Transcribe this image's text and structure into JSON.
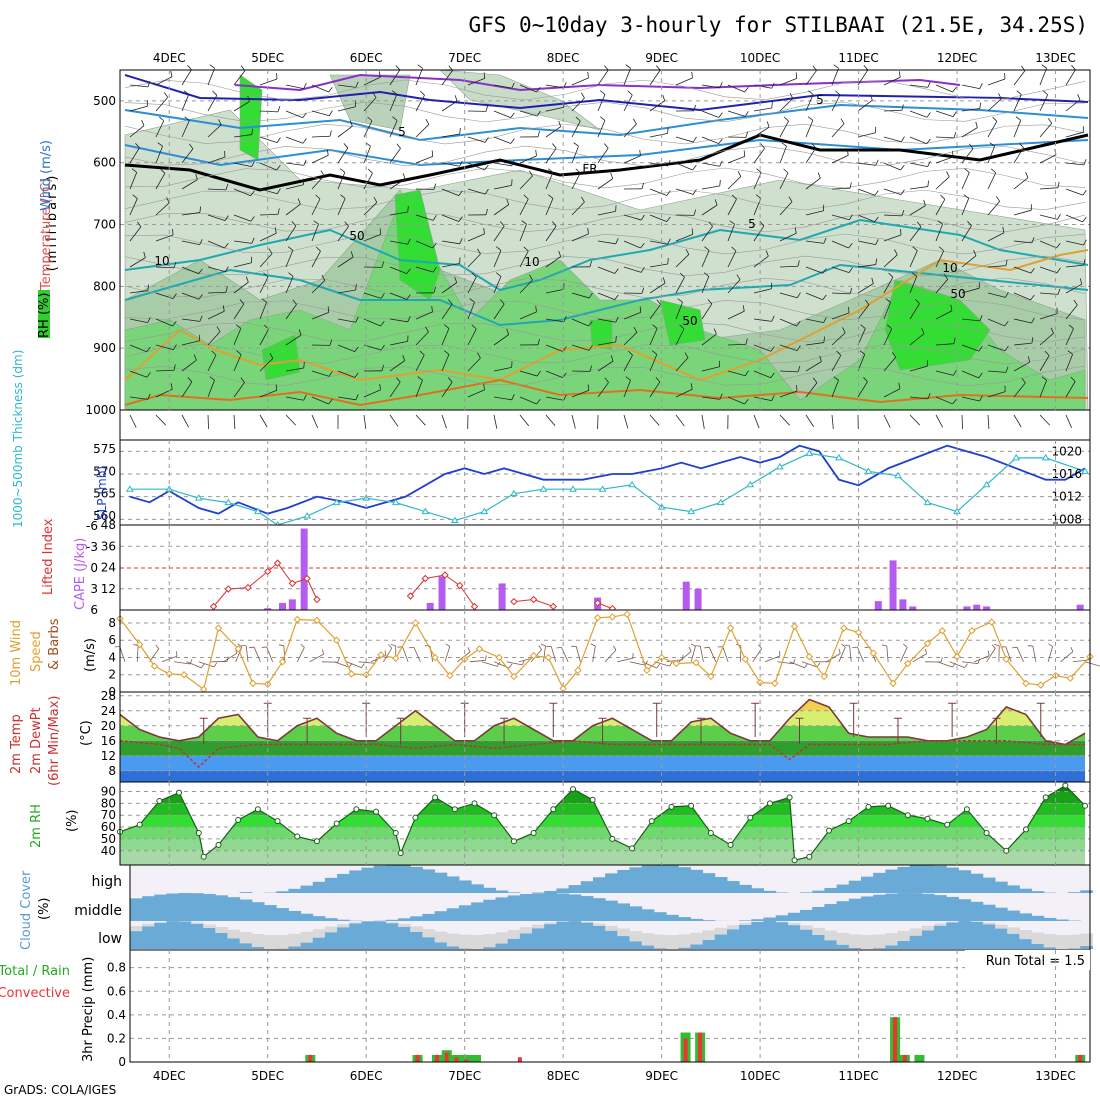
{
  "page": {
    "title": "GFS 0~10day 3-hourly for STILBAAI (21.5E, 34.25S)",
    "credit": "GrADS: COLA/IGES",
    "run_total": "Run Total = 1.5"
  },
  "dates": [
    "4DEC",
    "5DEC",
    "6DEC",
    "7DEC",
    "8DEC",
    "9DEC",
    "10DEC",
    "11DEC",
    "12DEC",
    "13DEC"
  ],
  "panels": {
    "upper": {
      "label_rh": "RH (%)",
      "label_temp": "Temperature (°C)",
      "label_wind": "Wind (m/s)",
      "label_mb": "(millibars)",
      "yticks": [
        "500",
        "600",
        "700",
        "800",
        "900",
        "1000"
      ],
      "contour_labels": [
        "5",
        "5",
        "5",
        "10",
        "10",
        "10",
        "FR",
        "50",
        "50",
        "50"
      ]
    },
    "thick": {
      "label_thick": "1000~500mb Thickness (dm)",
      "label_slp": "SLP (mb)",
      "yticks_left": [
        "575",
        "570",
        "565",
        "560"
      ],
      "yticks_right": [
        "1020",
        "1016",
        "1012",
        "1008"
      ]
    },
    "cape": {
      "label_li": "Lifted Index",
      "label_cape": "CAPE (J/kg)",
      "yticks_left": [
        "-6",
        "-3",
        "0",
        "3",
        "6"
      ],
      "yticks_right": [
        "48",
        "36",
        "24",
        "12"
      ]
    },
    "wind": {
      "label1": "10m Wind",
      "label2": "Speed",
      "label3": "& Barbs",
      "unit": "(m/s)",
      "yticks": [
        "8",
        "6",
        "4",
        "2",
        "0"
      ]
    },
    "temp": {
      "label1": "2m Temp",
      "label2": "2m DewPt",
      "label3": "(6hr Min/Max)",
      "unit": "(°C)",
      "yticks": [
        "28",
        "24",
        "20",
        "16",
        "12",
        "8"
      ]
    },
    "rh": {
      "label1": "2m RH",
      "unit": "(%)",
      "yticks": [
        "90",
        "80",
        "70",
        "60",
        "50",
        "40"
      ]
    },
    "cloud": {
      "label1": "Cloud Cover",
      "unit": "(%)",
      "levels": [
        "high",
        "middle",
        "low"
      ]
    },
    "precip": {
      "label1": "Total / Rain",
      "label2": "Convective",
      "label3": "3hr Precip (mm)",
      "yticks": [
        "0.8",
        "0.6",
        "0.4",
        "0.2",
        "0"
      ]
    }
  },
  "colors": {
    "rh_green": "#33cc33",
    "rh_bright": "#00ff00",
    "slp": "#1f3fcf",
    "thickness": "#2fb8c8",
    "lifted_index": "#e03030",
    "cape": "#b45cf0",
    "wind_speed": "#e0a030",
    "cloud": "#6aaad6",
    "precip_total": "#33bb33",
    "precip_conv": "#ee3333"
  },
  "chart_data": [
    {
      "type": "line",
      "id": "slp",
      "series": [
        {
          "name": "SLP (mb)",
          "x": [
            3.6,
            3.8,
            4.0,
            4.3,
            4.5,
            4.7,
            5.0,
            5.2,
            5.5,
            5.8,
            6.0,
            6.2,
            6.4,
            6.6,
            6.8,
            7.0,
            7.2,
            7.4,
            7.6,
            7.8,
            8.0,
            8.2,
            8.5,
            8.7,
            9.0,
            9.2,
            9.4,
            9.6,
            9.8,
            10.0,
            10.2,
            10.4,
            10.6,
            10.8,
            11.0,
            11.3,
            11.6,
            11.9,
            12.1,
            12.3,
            12.6,
            12.9,
            13.1,
            13.3
          ],
          "y": [
            1012,
            1011,
            1013,
            1010,
            1009,
            1011,
            1009,
            1010,
            1012,
            1011,
            1010,
            1011,
            1012,
            1014,
            1016,
            1017,
            1016,
            1017,
            1016,
            1015,
            1015,
            1015,
            1016,
            1016,
            1017,
            1018,
            1017,
            1018,
            1019,
            1018,
            1019,
            1021,
            1020,
            1015,
            1014,
            1017,
            1019,
            1021,
            1020,
            1019,
            1017,
            1015,
            1015,
            1017
          ]
        }
      ]
    },
    {
      "type": "line",
      "id": "thickness",
      "series": [
        {
          "name": "1000~500mb Thickness (dm)",
          "x": [
            3.6,
            4.0,
            4.3,
            4.6,
            4.9,
            5.1,
            5.4,
            5.7,
            6.0,
            6.3,
            6.6,
            6.9,
            7.2,
            7.5,
            7.8,
            8.1,
            8.4,
            8.7,
            9.0,
            9.3,
            9.6,
            9.9,
            10.2,
            10.5,
            10.8,
            11.1,
            11.4,
            11.7,
            12.0,
            12.3,
            12.6,
            12.9,
            13.3
          ],
          "y": [
            566,
            566,
            564,
            563,
            561,
            558,
            560,
            563,
            564,
            563,
            561,
            559,
            561,
            565,
            566,
            566,
            566,
            567,
            562,
            561,
            563,
            567,
            571,
            574,
            573,
            570,
            569,
            563,
            561,
            567,
            573,
            573,
            570
          ]
        }
      ]
    },
    {
      "type": "line",
      "id": "lifted_index",
      "series": [
        {
          "name": "Lifted Index",
          "x": [
            4.45,
            4.6,
            4.8,
            5.0,
            5.1,
            5.25,
            5.4,
            5.5
          ],
          "y": [
            5.5,
            3.0,
            2.8,
            0.5,
            -0.7,
            2.2,
            1.5,
            4.5
          ]
        },
        {
          "name": "Lifted Index",
          "x": [
            6.45,
            6.6,
            6.8,
            6.95,
            7.1
          ],
          "y": [
            4.0,
            1.5,
            1.0,
            2.5,
            5.5
          ]
        },
        {
          "name": "Lifted Index",
          "x": [
            7.5,
            7.7,
            7.9
          ],
          "y": [
            4.8,
            4.5,
            5.5
          ]
        },
        {
          "name": "Lifted Index",
          "x": [
            8.35,
            8.5
          ],
          "y": [
            5.0,
            5.8
          ]
        }
      ]
    },
    {
      "type": "bar",
      "id": "cape",
      "x": [
        5.0,
        5.15,
        5.25,
        5.37,
        6.65,
        6.77,
        7.38,
        8.35,
        9.25,
        9.37,
        11.2,
        11.35,
        11.45,
        11.55,
        12.1,
        12.2,
        12.3,
        13.25
      ],
      "values": [
        1,
        4,
        6,
        46,
        4,
        19,
        15,
        7,
        16,
        12,
        5,
        28,
        6,
        2,
        2,
        3,
        2,
        3
      ]
    },
    {
      "type": "line",
      "id": "wind_speed",
      "series": [
        {
          "name": "Speed",
          "x": [
            3.5,
            3.7,
            3.85,
            4.0,
            4.15,
            4.35,
            4.5,
            4.7,
            4.85,
            5.0,
            5.15,
            5.3,
            5.5,
            5.7,
            5.85,
            6.0,
            6.15,
            6.3,
            6.5,
            6.7,
            6.85,
            7.0,
            7.15,
            7.35,
            7.5,
            7.7,
            7.85,
            8.0,
            8.15,
            8.35,
            8.5,
            8.65,
            8.85,
            9.0,
            9.15,
            9.35,
            9.5,
            9.7,
            9.85,
            10.0,
            10.15,
            10.35,
            10.5,
            10.65,
            10.85,
            11.0,
            11.15,
            11.35,
            11.5,
            11.7,
            11.85,
            12.0,
            12.15,
            12.35,
            12.5,
            12.7,
            12.85,
            13.0,
            13.15,
            13.35
          ],
          "y": [
            8.5,
            5.5,
            3.0,
            2.1,
            2.0,
            0.3,
            7.4,
            5.0,
            1.0,
            0.9,
            3.5,
            8.4,
            8.3,
            6.0,
            2.1,
            2.0,
            4.3,
            3.9,
            8.0,
            4.0,
            1.9,
            3.8,
            5.0,
            4.0,
            1.8,
            4.2,
            4.0,
            0.4,
            2.5,
            8.6,
            8.7,
            9.0,
            2.5,
            4.0,
            3.3,
            3.4,
            1.8,
            7.4,
            3.8,
            1.1,
            1.0,
            7.6,
            4.1,
            1.8,
            7.4,
            6.9,
            4.5,
            1.0,
            3.3,
            5.6,
            7.1,
            4.1,
            7.1,
            8.1,
            3.8,
            1.0,
            0.8,
            1.9,
            1.6,
            4.1
          ]
        }
      ]
    },
    {
      "type": "area",
      "id": "temp",
      "series": [
        {
          "name": "2m Temp",
          "x": [
            3.5,
            3.7,
            3.9,
            4.1,
            4.3,
            4.5,
            4.7,
            4.9,
            5.1,
            5.3,
            5.5,
            5.7,
            5.9,
            6.1,
            6.3,
            6.5,
            6.7,
            6.9,
            7.1,
            7.3,
            7.5,
            7.7,
            7.9,
            8.1,
            8.3,
            8.5,
            8.7,
            8.9,
            9.1,
            9.3,
            9.5,
            9.7,
            9.9,
            10.1,
            10.3,
            10.5,
            10.7,
            10.9,
            11.1,
            11.3,
            11.5,
            11.7,
            11.9,
            12.1,
            12.3,
            12.5,
            12.7,
            12.9,
            13.1,
            13.3
          ],
          "y": [
            23,
            19,
            17,
            16,
            17,
            22,
            23,
            17,
            16,
            20,
            22,
            18,
            16,
            16,
            20,
            24,
            20,
            16,
            16,
            20,
            22,
            19,
            16,
            16,
            20,
            22,
            19,
            16,
            16,
            21,
            22,
            18,
            16,
            16,
            22,
            27,
            25,
            18,
            17,
            17,
            17,
            16,
            16,
            17,
            19,
            25,
            23,
            16,
            15,
            18
          ]
        },
        {
          "name": "2m DewPt",
          "x": [
            3.5,
            3.9,
            4.1,
            4.3,
            4.5,
            4.9,
            5.3,
            5.7,
            6.1,
            6.5,
            6.9,
            7.3,
            7.7,
            8.1,
            8.5,
            8.9,
            9.3,
            9.7,
            10.1,
            10.3,
            10.5,
            10.9,
            11.3,
            11.7,
            12.1,
            12.5,
            12.9,
            13.3
          ],
          "y": [
            16,
            15,
            14,
            9,
            14,
            15,
            15,
            15,
            15,
            14,
            15,
            14,
            15,
            16,
            15,
            15,
            15,
            15,
            15,
            11,
            15,
            15,
            15,
            16,
            16,
            16,
            15,
            15
          ]
        }
      ]
    },
    {
      "type": "area",
      "id": "rh",
      "series": [
        {
          "name": "2m RH",
          "x": [
            3.5,
            3.7,
            3.9,
            4.1,
            4.3,
            4.35,
            4.5,
            4.7,
            4.9,
            5.1,
            5.3,
            5.5,
            5.7,
            5.9,
            6.1,
            6.3,
            6.35,
            6.5,
            6.7,
            6.9,
            7.1,
            7.3,
            7.5,
            7.7,
            7.9,
            8.1,
            8.3,
            8.5,
            8.7,
            8.9,
            9.1,
            9.3,
            9.5,
            9.7,
            9.9,
            10.1,
            10.3,
            10.35,
            10.5,
            10.7,
            10.9,
            11.1,
            11.3,
            11.5,
            11.7,
            11.9,
            12.1,
            12.3,
            12.5,
            12.7,
            12.9,
            13.1,
            13.3
          ],
          "y": [
            56,
            62,
            82,
            89,
            55,
            35,
            45,
            66,
            75,
            65,
            52,
            48,
            63,
            75,
            73,
            55,
            38,
            68,
            85,
            75,
            80,
            70,
            48,
            55,
            75,
            92,
            83,
            50,
            42,
            65,
            77,
            78,
            55,
            45,
            68,
            80,
            85,
            32,
            35,
            57,
            65,
            77,
            78,
            70,
            67,
            62,
            75,
            55,
            40,
            58,
            85,
            95,
            78
          ]
        }
      ]
    },
    {
      "type": "bar",
      "id": "precip",
      "x": [
        5.35,
        6.45,
        6.65,
        6.75,
        6.85,
        6.95,
        7.05,
        7.5,
        9.2,
        9.35,
        11.35,
        11.45,
        11.6,
        13.25
      ],
      "series": [
        {
          "name": "Total / Rain",
          "values": [
            0.06,
            0.06,
            0.06,
            0.1,
            0.06,
            0.06,
            0.06,
            0.0,
            0.25,
            0.25,
            0.38,
            0.06,
            0.06,
            0.06
          ]
        },
        {
          "name": "Convective",
          "values": [
            0.06,
            0.06,
            0.06,
            0.08,
            0.04,
            0.02,
            0.0,
            0.04,
            0.2,
            0.25,
            0.38,
            0.06,
            0.0,
            0.06
          ]
        }
      ]
    }
  ]
}
